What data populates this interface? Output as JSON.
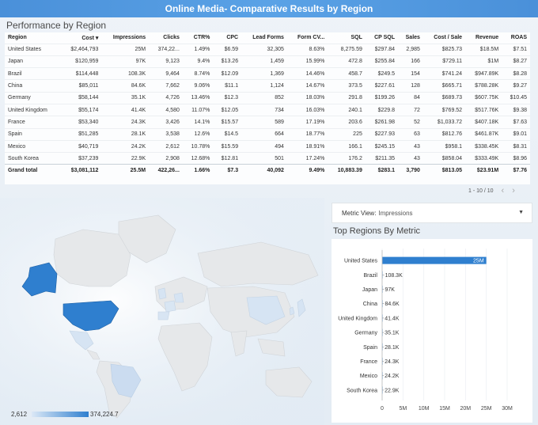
{
  "header": {
    "title": "Online Media- Comparative Results by Region"
  },
  "performance": {
    "title": "Performance by Region",
    "columns": [
      "Region",
      "Cost ▾",
      "Impressions",
      "Clicks",
      "CTR%",
      "CPC",
      "Lead Forms",
      "Form CV...",
      "SQL",
      "CP SQL",
      "Sales",
      "Cost / Sale",
      "Revenue",
      "ROAS"
    ],
    "rows": [
      [
        "United States",
        "$2,464,793",
        "25M",
        "374,22...",
        "1.49%",
        "$6.59",
        "32,305",
        "8.63%",
        "8,275.59",
        "$297.84",
        "2,985",
        "$825.73",
        "$18.5M",
        "$7.51"
      ],
      [
        "Japan",
        "$120,959",
        "97K",
        "9,123",
        "9.4%",
        "$13.26",
        "1,459",
        "15.99%",
        "472.8",
        "$255.84",
        "166",
        "$729.11",
        "$1M",
        "$8.27"
      ],
      [
        "Brazil",
        "$114,448",
        "108.3K",
        "9,464",
        "8.74%",
        "$12.09",
        "1,369",
        "14.46%",
        "458.7",
        "$249.5",
        "154",
        "$741.24",
        "$947.89K",
        "$8.28"
      ],
      [
        "China",
        "$85,011",
        "84.6K",
        "7,662",
        "9.06%",
        "$11.1",
        "1,124",
        "14.67%",
        "373.5",
        "$227.61",
        "128",
        "$665.71",
        "$788.28K",
        "$9.27"
      ],
      [
        "Germany",
        "$58,144",
        "35.1K",
        "4,726",
        "13.46%",
        "$12.3",
        "852",
        "18.03%",
        "291.8",
        "$199.26",
        "84",
        "$689.73",
        "$607.75K",
        "$10.45"
      ],
      [
        "United Kingdom",
        "$55,174",
        "41.4K",
        "4,580",
        "11.07%",
        "$12.05",
        "734",
        "16.03%",
        "240.1",
        "$229.8",
        "72",
        "$769.52",
        "$517.76K",
        "$9.38"
      ],
      [
        "France",
        "$53,340",
        "24.3K",
        "3,426",
        "14.1%",
        "$15.57",
        "589",
        "17.19%",
        "203.6",
        "$261.98",
        "52",
        "$1,033.72",
        "$407.18K",
        "$7.63"
      ],
      [
        "Spain",
        "$51,285",
        "28.1K",
        "3,538",
        "12.6%",
        "$14.5",
        "664",
        "18.77%",
        "225",
        "$227.93",
        "63",
        "$812.76",
        "$461.87K",
        "$9.01"
      ],
      [
        "Mexico",
        "$40,719",
        "24.2K",
        "2,612",
        "10.78%",
        "$15.59",
        "494",
        "18.91%",
        "166.1",
        "$245.15",
        "43",
        "$958.1",
        "$338.45K",
        "$8.31"
      ],
      [
        "South Korea",
        "$37,239",
        "22.9K",
        "2,908",
        "12.68%",
        "$12.81",
        "501",
        "17.24%",
        "176.2",
        "$211.35",
        "43",
        "$858.04",
        "$333.49K",
        "$8.96"
      ]
    ],
    "total": [
      "Grand total",
      "$3,081,112",
      "25.5M",
      "422,26...",
      "1.66%",
      "$7.3",
      "40,092",
      "9.49%",
      "10,883.39",
      "$283.1",
      "3,790",
      "$813.05",
      "$23.91M",
      "$7.76"
    ],
    "pager": {
      "range": "1 - 10 / 10"
    }
  },
  "map": {
    "legend_min": "2,612",
    "legend_max": "374,224.7",
    "colors": {
      "high": "#2f7fcf",
      "low": "#cfe0f3",
      "land": "#e8eaec"
    }
  },
  "metric_view": {
    "label": "Metric View:",
    "value": "Impressions"
  },
  "top_regions": {
    "title": "Top Regions By Metric",
    "bar_color": "#2f7fcf"
  },
  "chart_data": {
    "type": "bar",
    "orientation": "horizontal",
    "title": "Top Regions By Metric",
    "categories": [
      "United States",
      "Brazil",
      "Japan",
      "China",
      "United Kingdom",
      "Germany",
      "Spain",
      "France",
      "Mexico",
      "South Korea"
    ],
    "values": [
      25000000,
      108300,
      97000,
      84600,
      41400,
      35100,
      28100,
      24300,
      24200,
      22900
    ],
    "data_labels": [
      "25M",
      "108.3K",
      "97K",
      "84.6K",
      "41.4K",
      "35.1K",
      "28.1K",
      "24.3K",
      "24.2K",
      "22.9K"
    ],
    "xticks": [
      "0",
      "5M",
      "10M",
      "15M",
      "20M",
      "25M",
      "30M"
    ],
    "xlim": [
      0,
      30000000
    ],
    "grid": true
  }
}
